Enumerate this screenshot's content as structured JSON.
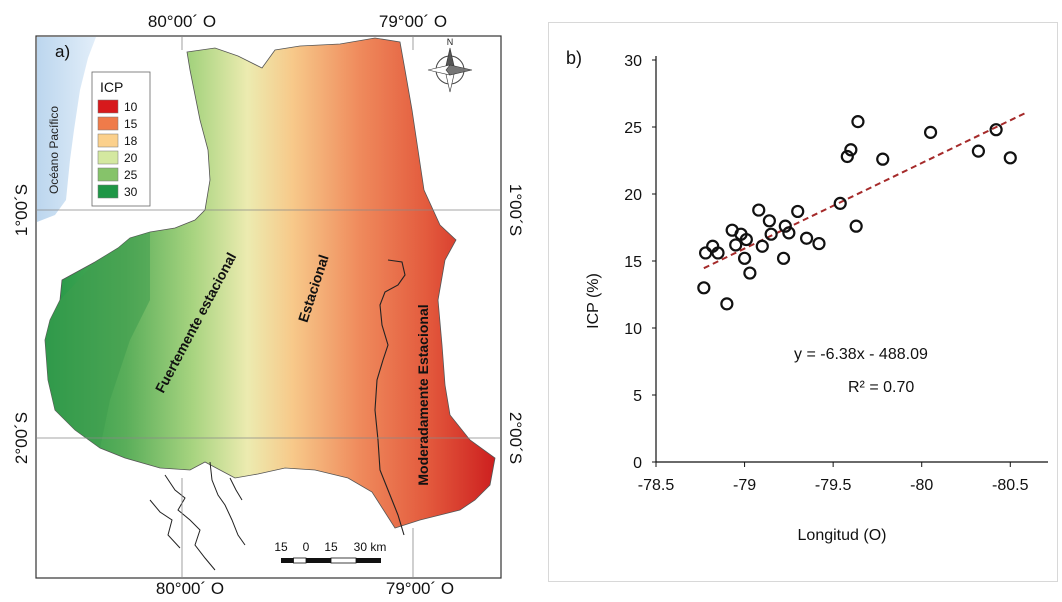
{
  "panel_a": {
    "label": "a)",
    "coords": {
      "top_left": "80°00´ O",
      "top_right": "79°00´ O",
      "bottom_left": "80°00´ O",
      "bottom_right": "79°00´ O",
      "left_upper": "1°00´S",
      "left_lower": "2°00´S",
      "right_upper": "1°00´S",
      "right_lower": "2°00´S"
    },
    "ocean_label": "Océano Pacífico",
    "north_label": "N",
    "legend": {
      "title": "ICP",
      "items": [
        {
          "label": "10",
          "color": "#d7191c"
        },
        {
          "label": "15",
          "color": "#ef7b4a"
        },
        {
          "label": "18",
          "color": "#fbd08c"
        },
        {
          "label": "20",
          "color": "#d4e8a0"
        },
        {
          "label": "25",
          "color": "#86c36a"
        },
        {
          "label": "30",
          "color": "#1f9646"
        }
      ]
    },
    "zones": [
      "Fuertemente estacional",
      "Estacional",
      "Moderadamente Estacional"
    ],
    "scale_bar": {
      "ticks": [
        "15",
        "0",
        "15",
        "30 km"
      ]
    }
  },
  "panel_b": {
    "label": "b)",
    "chart_data": {
      "type": "scatter",
      "xlabel": "Longitud (O)",
      "ylabel": "ICP (%)",
      "xlim": [
        -78.5,
        -80.6
      ],
      "ylim": [
        0,
        30
      ],
      "xticks": [
        "-78.5",
        "-79",
        "-79.5",
        "-80",
        "-80.5"
      ],
      "yticks": [
        "0",
        "5",
        "10",
        "15",
        "20",
        "25",
        "30"
      ],
      "grid": false,
      "points": [
        {
          "x": -78.77,
          "y": 13.0
        },
        {
          "x": -78.78,
          "y": 15.6
        },
        {
          "x": -78.82,
          "y": 16.1
        },
        {
          "x": -78.85,
          "y": 15.6
        },
        {
          "x": -78.9,
          "y": 11.8
        },
        {
          "x": -78.93,
          "y": 17.3
        },
        {
          "x": -78.95,
          "y": 16.2
        },
        {
          "x": -78.98,
          "y": 17.0
        },
        {
          "x": -79.0,
          "y": 15.2
        },
        {
          "x": -79.01,
          "y": 16.6
        },
        {
          "x": -79.03,
          "y": 14.1
        },
        {
          "x": -79.08,
          "y": 18.8
        },
        {
          "x": -79.1,
          "y": 16.1
        },
        {
          "x": -79.14,
          "y": 18.0
        },
        {
          "x": -79.15,
          "y": 17.0
        },
        {
          "x": -79.22,
          "y": 15.2
        },
        {
          "x": -79.23,
          "y": 17.6
        },
        {
          "x": -79.25,
          "y": 17.1
        },
        {
          "x": -79.3,
          "y": 18.7
        },
        {
          "x": -79.35,
          "y": 16.7
        },
        {
          "x": -79.42,
          "y": 16.3
        },
        {
          "x": -79.54,
          "y": 19.3
        },
        {
          "x": -79.58,
          "y": 22.8
        },
        {
          "x": -79.6,
          "y": 23.3
        },
        {
          "x": -79.64,
          "y": 25.4
        },
        {
          "x": -79.63,
          "y": 17.6
        },
        {
          "x": -79.78,
          "y": 22.6
        },
        {
          "x": -80.05,
          "y": 24.6
        },
        {
          "x": -80.32,
          "y": 23.2
        },
        {
          "x": -80.42,
          "y": 24.8
        },
        {
          "x": -80.5,
          "y": 22.7
        }
      ],
      "trendline": {
        "equation": "y = -6.38x - 488.09",
        "r2": "R² = 0.70",
        "color": "#a52a2a",
        "style": "dashed"
      },
      "marker_style": "open-circle"
    }
  }
}
